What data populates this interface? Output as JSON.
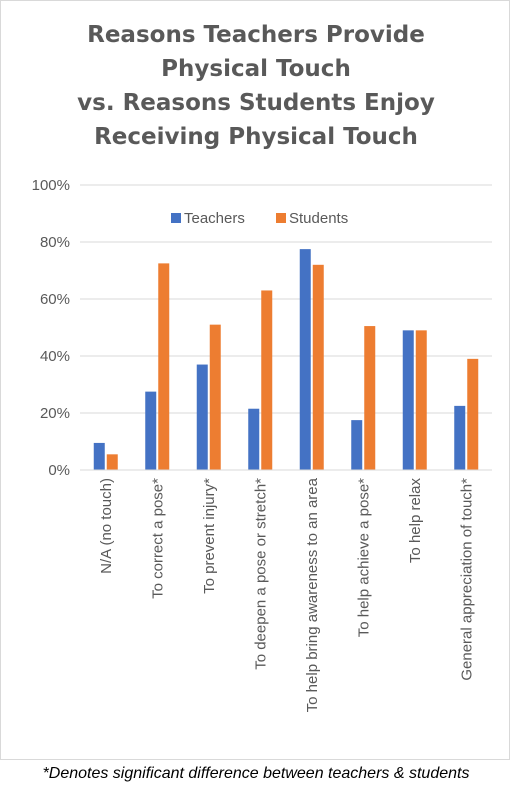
{
  "chart_data": {
    "type": "bar",
    "title_lines": [
      "Reasons Teachers Provide",
      "Physical Touch",
      "vs. Reasons Students Enjoy",
      "Receiving Physical Touch"
    ],
    "categories": [
      "N/A (no touch)",
      "To correct a pose*",
      "To prevent injury*",
      "To deepen a pose or stretch*",
      "To help bring awareness to an area",
      "To help achieve a pose*",
      "To help relax",
      "General appreciation of touch*"
    ],
    "series": [
      {
        "name": "Teachers",
        "color": "#4472C4",
        "values": [
          9.5,
          27.5,
          37,
          21.5,
          77.5,
          17.5,
          49,
          22.5
        ]
      },
      {
        "name": "Students",
        "color": "#ED7D31",
        "values": [
          5.5,
          72.5,
          51,
          63,
          72,
          50.5,
          49,
          39
        ]
      }
    ],
    "ylim": [
      0,
      100
    ],
    "y_ticks": [
      "0%",
      "20%",
      "40%",
      "60%",
      "80%",
      "100%"
    ],
    "grid": true,
    "legend_position": "top-center"
  },
  "footnote": "*Denotes significant difference between teachers & students"
}
